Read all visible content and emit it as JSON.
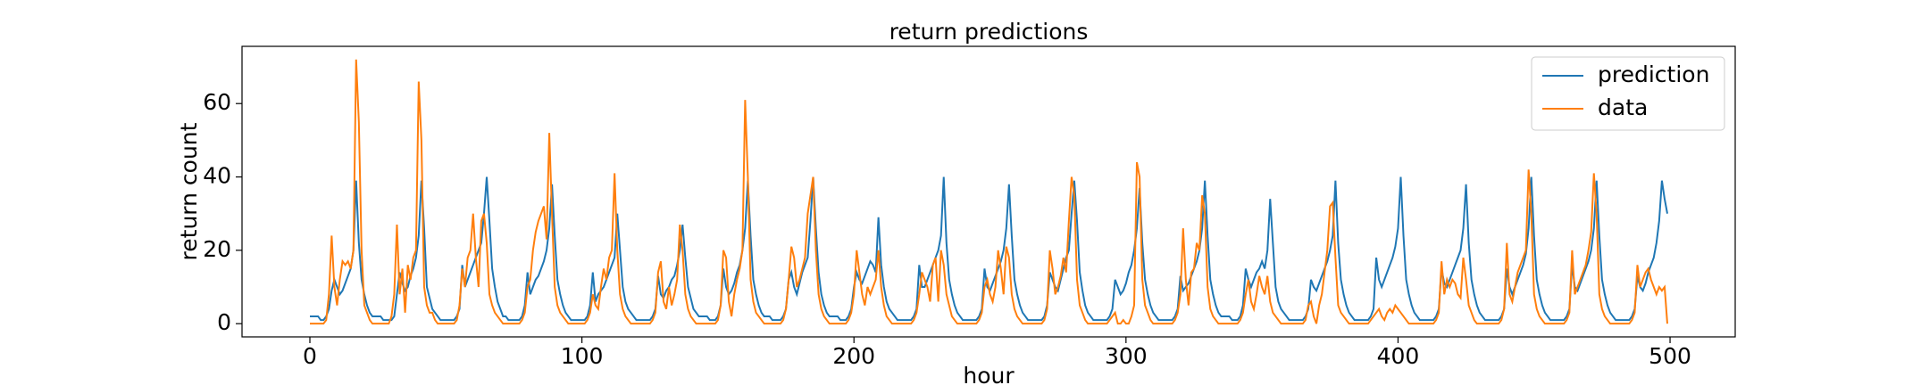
{
  "chart_data": {
    "type": "line",
    "title": "return predictions",
    "xlabel": "hour",
    "ylabel": "return count",
    "xlim": [
      -24.95,
      523.95
    ],
    "ylim": [
      -3.6,
      75.6
    ],
    "xticks": [
      0,
      100,
      200,
      300,
      400,
      500
    ],
    "yticks": [
      0,
      20,
      40,
      60
    ],
    "legend": "upper right",
    "grid": false,
    "x": [
      0,
      1,
      2,
      3,
      4,
      5,
      6,
      7,
      8,
      9,
      10,
      11,
      12,
      13,
      14,
      15,
      16,
      17,
      18,
      19,
      20,
      21,
      22,
      23,
      24,
      25,
      26,
      27,
      28,
      29,
      30,
      31,
      32,
      33,
      34,
      35,
      36,
      37,
      38,
      39,
      40,
      41,
      42,
      43,
      44,
      45,
      46,
      47,
      48,
      49,
      50,
      51,
      52,
      53,
      54,
      55,
      56,
      57,
      58,
      59,
      60,
      61,
      62,
      63,
      64,
      65,
      66,
      67,
      68,
      69,
      70,
      71,
      72,
      73,
      74,
      75,
      76,
      77,
      78,
      79,
      80,
      81,
      82,
      83,
      84,
      85,
      86,
      87,
      88,
      89,
      90,
      91,
      92,
      93,
      94,
      95,
      96,
      97,
      98,
      99,
      100,
      101,
      102,
      103,
      104,
      105,
      106,
      107,
      108,
      109,
      110,
      111,
      112,
      113,
      114,
      115,
      116,
      117,
      118,
      119,
      120,
      121,
      122,
      123,
      124,
      125,
      126,
      127,
      128,
      129,
      130,
      131,
      132,
      133,
      134,
      135,
      136,
      137,
      138,
      139,
      140,
      141,
      142,
      143,
      144,
      145,
      146,
      147,
      148,
      149,
      150,
      151,
      152,
      153,
      154,
      155,
      156,
      157,
      158,
      159,
      160,
      161,
      162,
      163,
      164,
      165,
      166,
      167,
      168,
      169,
      170,
      171,
      172,
      173,
      174,
      175,
      176,
      177,
      178,
      179,
      180,
      181,
      182,
      183,
      184,
      185,
      186,
      187,
      188,
      189,
      190,
      191,
      192,
      193,
      194,
      195,
      196,
      197,
      198,
      199,
      200,
      201,
      202,
      203,
      204,
      205,
      206,
      207,
      208,
      209,
      210,
      211,
      212,
      213,
      214,
      215,
      216,
      217,
      218,
      219,
      220,
      221,
      222,
      223,
      224,
      225,
      226,
      227,
      228,
      229,
      230,
      231,
      232,
      233,
      234,
      235,
      236,
      237,
      238,
      239,
      240,
      241,
      242,
      243,
      244,
      245,
      246,
      247,
      248,
      249,
      250,
      251,
      252,
      253,
      254,
      255,
      256,
      257,
      258,
      259,
      260,
      261,
      262,
      263,
      264,
      265,
      266,
      267,
      268,
      269,
      270,
      271,
      272,
      273,
      274,
      275,
      276,
      277,
      278,
      279,
      280,
      281,
      282,
      283,
      284,
      285,
      286,
      287,
      288,
      289,
      290,
      291,
      292,
      293,
      294,
      295,
      296,
      297,
      298,
      299,
      300,
      301,
      302,
      303,
      304,
      305,
      306,
      307,
      308,
      309,
      310,
      311,
      312,
      313,
      314,
      315,
      316,
      317,
      318,
      319,
      320,
      321,
      322,
      323,
      324,
      325,
      326,
      327,
      328,
      329,
      330,
      331,
      332,
      333,
      334,
      335,
      336,
      337,
      338,
      339,
      340,
      341,
      342,
      343,
      344,
      345,
      346,
      347,
      348,
      349,
      350,
      351,
      352,
      353,
      354,
      355,
      356,
      357,
      358,
      359,
      360,
      361,
      362,
      363,
      364,
      365,
      366,
      367,
      368,
      369,
      370,
      371,
      372,
      373,
      374,
      375,
      376,
      377,
      378,
      379,
      380,
      381,
      382,
      383,
      384,
      385,
      386,
      387,
      388,
      389,
      390,
      391,
      392,
      393,
      394,
      395,
      396,
      397,
      398,
      399,
      400,
      401,
      402,
      403,
      404,
      405,
      406,
      407,
      408,
      409,
      410,
      411,
      412,
      413,
      414,
      415,
      416,
      417,
      418,
      419,
      420,
      421,
      422,
      423,
      424,
      425,
      426,
      427,
      428,
      429,
      430,
      431,
      432,
      433,
      434,
      435,
      436,
      437,
      438,
      439,
      440,
      441,
      442,
      443,
      444,
      445,
      446,
      447,
      448,
      449,
      450,
      451,
      452,
      453,
      454,
      455,
      456,
      457,
      458,
      459,
      460,
      461,
      462,
      463,
      464,
      465,
      466,
      467,
      468,
      469,
      470,
      471,
      472,
      473,
      474,
      475,
      476,
      477,
      478,
      479,
      480,
      481,
      482,
      483,
      484,
      485,
      486,
      487,
      488,
      489,
      490,
      491,
      492,
      493,
      494,
      495,
      496,
      497,
      498,
      499
    ],
    "series": [
      {
        "name": "prediction",
        "color": "#1f77b4",
        "values": [
          2,
          2,
          2,
          2,
          1,
          1,
          2,
          4,
          9,
          12,
          10,
          8,
          9,
          11,
          13,
          15,
          20,
          39,
          22,
          12,
          8,
          5,
          3,
          2,
          2,
          2,
          2,
          1,
          1,
          1,
          1,
          2,
          8,
          14,
          11,
          9,
          10,
          13,
          15,
          18,
          24,
          39,
          26,
          10,
          7,
          4,
          3,
          2,
          1,
          1,
          1,
          1,
          1,
          1,
          2,
          4,
          16,
          10,
          12,
          14,
          16,
          18,
          20,
          22,
          30,
          40,
          28,
          15,
          10,
          6,
          4,
          2,
          2,
          1,
          1,
          1,
          1,
          1,
          2,
          5,
          14,
          8,
          10,
          12,
          13,
          15,
          17,
          20,
          26,
          38,
          24,
          12,
          8,
          5,
          3,
          2,
          1,
          1,
          1,
          1,
          1,
          1,
          2,
          5,
          14,
          6,
          8,
          9,
          10,
          12,
          14,
          16,
          18,
          30,
          20,
          10,
          6,
          4,
          3,
          2,
          1,
          1,
          1,
          1,
          1,
          1,
          2,
          4,
          13,
          8,
          7,
          9,
          10,
          12,
          13,
          16,
          20,
          27,
          18,
          10,
          7,
          4,
          3,
          2,
          2,
          2,
          2,
          1,
          1,
          1,
          2,
          5,
          15,
          10,
          8,
          9,
          11,
          14,
          16,
          20,
          26,
          39,
          24,
          12,
          8,
          5,
          3,
          2,
          2,
          2,
          1,
          1,
          1,
          1,
          2,
          4,
          12,
          14,
          10,
          8,
          11,
          14,
          16,
          18,
          28,
          40,
          26,
          14,
          8,
          5,
          3,
          2,
          2,
          2,
          2,
          1,
          1,
          1,
          2,
          4,
          10,
          14,
          12,
          11,
          13,
          15,
          17,
          16,
          14,
          29,
          16,
          10,
          6,
          4,
          3,
          2,
          1,
          1,
          1,
          1,
          1,
          1,
          2,
          4,
          16,
          10,
          10,
          12,
          14,
          16,
          18,
          20,
          24,
          40,
          22,
          12,
          8,
          5,
          3,
          2,
          1,
          1,
          1,
          1,
          1,
          1,
          2,
          4,
          15,
          10,
          9,
          11,
          13,
          15,
          17,
          20,
          26,
          38,
          24,
          12,
          8,
          5,
          3,
          2,
          1,
          1,
          1,
          1,
          1,
          1,
          2,
          5,
          14,
          12,
          10,
          9,
          12,
          15,
          18,
          20,
          30,
          39,
          28,
          14,
          9,
          5,
          3,
          2,
          1,
          1,
          1,
          1,
          1,
          1,
          2,
          4,
          12,
          10,
          8,
          9,
          11,
          14,
          16,
          20,
          26,
          37,
          22,
          12,
          8,
          5,
          3,
          2,
          1,
          1,
          1,
          1,
          1,
          1,
          2,
          4,
          13,
          9,
          10,
          11,
          13,
          15,
          17,
          20,
          26,
          39,
          24,
          12,
          8,
          5,
          3,
          2,
          2,
          2,
          2,
          1,
          1,
          1,
          2,
          5,
          15,
          12,
          10,
          12,
          14,
          15,
          17,
          15,
          20,
          34,
          22,
          10,
          6,
          4,
          3,
          2,
          1,
          1,
          1,
          1,
          1,
          1,
          2,
          4,
          12,
          10,
          9,
          11,
          13,
          15,
          17,
          20,
          24,
          39,
          22,
          12,
          8,
          5,
          3,
          2,
          1,
          1,
          1,
          1,
          1,
          1,
          2,
          4,
          18,
          12,
          10,
          12,
          14,
          16,
          18,
          21,
          26,
          40,
          24,
          12,
          8,
          5,
          3,
          2,
          1,
          1,
          1,
          1,
          1,
          1,
          2,
          4,
          15,
          11,
          10,
          12,
          14,
          16,
          18,
          20,
          26,
          38,
          22,
          12,
          8,
          5,
          3,
          2,
          1,
          1,
          1,
          1,
          1,
          1,
          2,
          4,
          15,
          10,
          8,
          10,
          12,
          14,
          16,
          19,
          26,
          40,
          24,
          12,
          8,
          5,
          3,
          2,
          1,
          1,
          1,
          1,
          1,
          1,
          2,
          4,
          16,
          10,
          9,
          11,
          13,
          15,
          17,
          20,
          26,
          39,
          24,
          12,
          8,
          5,
          3,
          2,
          1,
          1,
          1,
          1,
          1,
          1,
          2,
          4,
          13,
          10,
          9,
          11,
          14,
          16,
          18,
          22,
          28,
          39,
          34,
          30
        ]
      },
      {
        "name": "data",
        "color": "#ff7f0e",
        "values": [
          0,
          0,
          0,
          0,
          0,
          0,
          1,
          8,
          24,
          10,
          5,
          12,
          17,
          16,
          17,
          15,
          20,
          72,
          55,
          20,
          5,
          3,
          1,
          0,
          0,
          0,
          0,
          0,
          0,
          0,
          2,
          8,
          27,
          8,
          15,
          3,
          16,
          12,
          18,
          20,
          66,
          50,
          10,
          5,
          3,
          3,
          1,
          0,
          0,
          0,
          0,
          0,
          0,
          0,
          1,
          5,
          15,
          10,
          18,
          20,
          30,
          18,
          10,
          28,
          30,
          22,
          8,
          5,
          3,
          2,
          1,
          0,
          0,
          0,
          0,
          0,
          0,
          0,
          1,
          3,
          10,
          12,
          20,
          25,
          28,
          30,
          32,
          23,
          52,
          30,
          10,
          5,
          3,
          2,
          1,
          0,
          0,
          0,
          0,
          0,
          0,
          0,
          1,
          3,
          8,
          5,
          4,
          10,
          15,
          12,
          18,
          20,
          41,
          20,
          8,
          4,
          2,
          1,
          0,
          0,
          0,
          0,
          0,
          0,
          0,
          0,
          1,
          3,
          14,
          17,
          6,
          4,
          10,
          5,
          8,
          12,
          27,
          20,
          8,
          4,
          2,
          1,
          0,
          0,
          0,
          0,
          0,
          0,
          0,
          0,
          1,
          5,
          20,
          18,
          6,
          2,
          8,
          12,
          15,
          20,
          61,
          40,
          12,
          6,
          3,
          2,
          1,
          0,
          0,
          0,
          0,
          0,
          0,
          0,
          1,
          4,
          12,
          21,
          18,
          10,
          12,
          15,
          18,
          30,
          35,
          40,
          20,
          8,
          4,
          2,
          1,
          0,
          0,
          0,
          0,
          0,
          0,
          0,
          1,
          3,
          8,
          20,
          14,
          8,
          5,
          10,
          8,
          10,
          12,
          20,
          10,
          5,
          2,
          1,
          0,
          0,
          0,
          0,
          0,
          0,
          0,
          0,
          1,
          3,
          8,
          14,
          12,
          10,
          6,
          16,
          18,
          6,
          20,
          16,
          8,
          5,
          2,
          1,
          0,
          0,
          0,
          0,
          0,
          0,
          0,
          0,
          1,
          3,
          10,
          12,
          8,
          6,
          10,
          20,
          15,
          8,
          21,
          18,
          8,
          4,
          2,
          1,
          0,
          0,
          0,
          0,
          0,
          0,
          0,
          0,
          1,
          4,
          20,
          15,
          8,
          10,
          13,
          18,
          14,
          28,
          40,
          35,
          12,
          5,
          3,
          1,
          0,
          0,
          0,
          0,
          0,
          0,
          0,
          0,
          1,
          2,
          3,
          0,
          0,
          1,
          0,
          0,
          2,
          5,
          44,
          40,
          12,
          5,
          3,
          1,
          0,
          0,
          0,
          0,
          0,
          0,
          0,
          0,
          1,
          3,
          8,
          26,
          12,
          5,
          14,
          15,
          22,
          20,
          35,
          30,
          10,
          4,
          2,
          1,
          0,
          0,
          0,
          0,
          0,
          0,
          0,
          0,
          1,
          3,
          8,
          12,
          6,
          4,
          8,
          13,
          10,
          8,
          13,
          6,
          3,
          2,
          1,
          0,
          0,
          0,
          0,
          0,
          0,
          0,
          0,
          0,
          1,
          5,
          6,
          2,
          0,
          5,
          8,
          14,
          20,
          32,
          33,
          18,
          5,
          3,
          2,
          1,
          0,
          0,
          0,
          0,
          0,
          0,
          0,
          0,
          1,
          2,
          3,
          4,
          2,
          1,
          3,
          4,
          3,
          5,
          4,
          3,
          2,
          1,
          0,
          0,
          0,
          0,
          0,
          0,
          0,
          0,
          0,
          0,
          1,
          3,
          17,
          8,
          12,
          10,
          12,
          11,
          8,
          7,
          18,
          12,
          5,
          3,
          1,
          0,
          0,
          0,
          0,
          0,
          0,
          0,
          0,
          0,
          1,
          4,
          22,
          8,
          6,
          10,
          14,
          16,
          18,
          20,
          42,
          30,
          8,
          4,
          2,
          1,
          0,
          0,
          0,
          0,
          0,
          0,
          0,
          0,
          1,
          3,
          20,
          8,
          10,
          12,
          14,
          16,
          20,
          25,
          41,
          30,
          8,
          4,
          2,
          1,
          0,
          0,
          0,
          0,
          0,
          0,
          0,
          0,
          1,
          3,
          16,
          10,
          12,
          14,
          15,
          12,
          10,
          8,
          10,
          9,
          10,
          0
        ]
      }
    ]
  }
}
